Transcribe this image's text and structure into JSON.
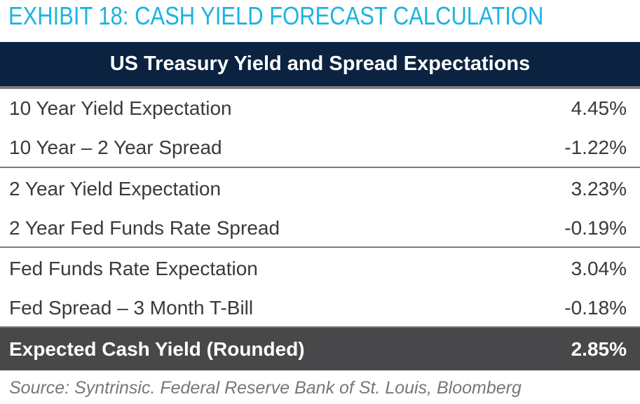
{
  "title": "EXHIBIT 18: CASH YIELD FORECAST CALCULATION",
  "table": {
    "header": "US Treasury Yield and Spread Expectations",
    "rows": [
      {
        "label": "10 Year Yield Expectation",
        "value": "4.45%"
      },
      {
        "label": "10 Year – 2 Year Spread",
        "value": "-1.22%"
      },
      {
        "label": "2 Year Yield Expectation",
        "value": "3.23%"
      },
      {
        "label": "2 Year Fed Funds Rate Spread",
        "value": "-0.19%"
      },
      {
        "label": "Fed Funds Rate Expectation",
        "value": "3.04%"
      },
      {
        "label": "Fed Spread – 3 Month T-Bill",
        "value": "-0.18%"
      }
    ],
    "total": {
      "label": "Expected Cash Yield (Rounded)",
      "value": "2.85%"
    }
  },
  "source": "Source: Syntrinsic. Federal Reserve Bank of St. Louis, Bloomberg",
  "colors": {
    "title": "#1bb3e1",
    "header_bg": "#0b2341",
    "total_bg": "#48484a"
  }
}
